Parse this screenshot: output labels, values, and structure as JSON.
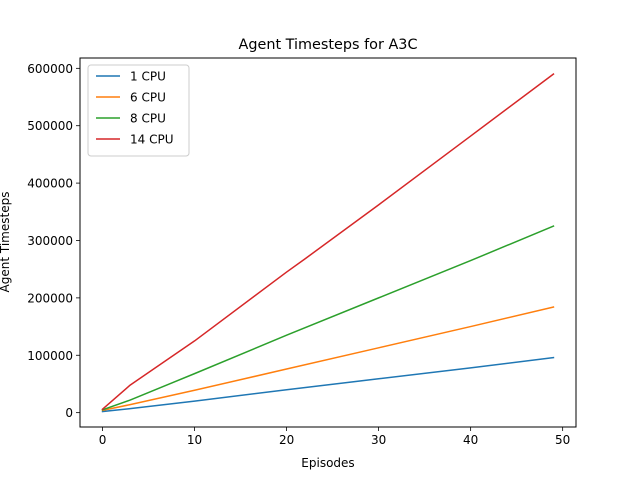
{
  "chart_data": {
    "type": "line",
    "title": "Agent Timesteps for A3C",
    "xlabel": "Episodes",
    "ylabel": "Agent Timesteps",
    "xlim": [
      -2.45,
      51.45
    ],
    "ylim": [
      -25000,
      618000
    ],
    "xticks": [
      0,
      10,
      20,
      30,
      40,
      50
    ],
    "yticks": [
      0,
      100000,
      200000,
      300000,
      400000,
      500000,
      600000
    ],
    "xtick_labels": [
      "0",
      "10",
      "20",
      "30",
      "40",
      "50"
    ],
    "ytick_labels": [
      "0",
      "100000",
      "200000",
      "300000",
      "400000",
      "500000",
      "600000"
    ],
    "legend_position": "upper-left",
    "grid": false,
    "series": [
      {
        "name": "1 CPU",
        "color": "#1f77b4",
        "x": [
          0,
          3,
          10,
          20,
          30,
          40,
          49
        ],
        "y": [
          2000,
          7000,
          20000,
          40000,
          59000,
          78000,
          96000
        ]
      },
      {
        "name": "6 CPU",
        "color": "#ff7f0e",
        "x": [
          0,
          3,
          10,
          20,
          30,
          40,
          49
        ],
        "y": [
          4000,
          14000,
          39000,
          76000,
          113000,
          150000,
          184000
        ]
      },
      {
        "name": "8 CPU",
        "color": "#2ca02c",
        "x": [
          0,
          3,
          10,
          20,
          30,
          40,
          49
        ],
        "y": [
          5000,
          22000,
          68000,
          135000,
          200000,
          265000,
          325000
        ]
      },
      {
        "name": "14 CPU",
        "color": "#d62728",
        "x": [
          0,
          3,
          10,
          20,
          22,
          30,
          40,
          49
        ],
        "y": [
          6000,
          48000,
          125000,
          245000,
          268000,
          362000,
          482000,
          590000
        ]
      }
    ]
  }
}
